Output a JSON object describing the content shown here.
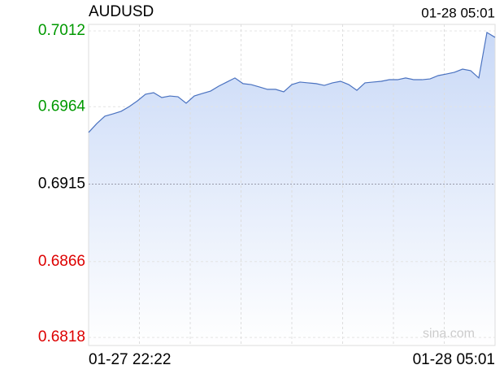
{
  "chart_data": {
    "type": "area",
    "title": "AUDUSD",
    "last_time": "01-28 05:01",
    "watermark": "sina.com",
    "categories": [
      "01-27 22:22",
      null,
      null,
      null,
      null,
      null,
      null,
      null,
      null,
      null,
      null,
      null,
      null,
      null,
      null,
      null,
      null,
      null,
      null,
      null,
      null,
      null,
      null,
      null,
      null,
      null,
      null,
      null,
      null,
      null,
      null,
      null,
      null,
      null,
      null,
      null,
      null,
      null,
      null,
      null,
      null,
      null,
      null,
      null,
      null,
      null,
      null,
      null,
      null,
      null,
      "01-28 05:01"
    ],
    "values": [
      0.69477,
      0.69533,
      0.6958,
      0.69595,
      0.69611,
      0.69641,
      0.69677,
      0.69719,
      0.69729,
      0.69698,
      0.69708,
      0.69703,
      0.69662,
      0.69708,
      0.69724,
      0.69739,
      0.6977,
      0.69796,
      0.69822,
      0.69786,
      0.6978,
      0.69765,
      0.6975,
      0.6975,
      0.69734,
      0.6978,
      0.69796,
      0.69791,
      0.69786,
      0.69775,
      0.69791,
      0.69801,
      0.6978,
      0.69744,
      0.69791,
      0.69796,
      0.69801,
      0.69811,
      0.69811,
      0.69822,
      0.69811,
      0.69811,
      0.69816,
      0.69837,
      0.69847,
      0.69858,
      0.69878,
      0.69868,
      0.69822,
      0.7011,
      0.70079
    ],
    "color": "#4a72c0",
    "ylim": [
      0.68129,
      0.70161
    ],
    "yticks": [
      0.7012,
      0.6964,
      0.6915,
      0.6866,
      0.6818
    ],
    "ytick_colors": [
      "#009900",
      "#009900",
      "#000000",
      "#dd0000",
      "#dd0000"
    ],
    "grid": true
  }
}
